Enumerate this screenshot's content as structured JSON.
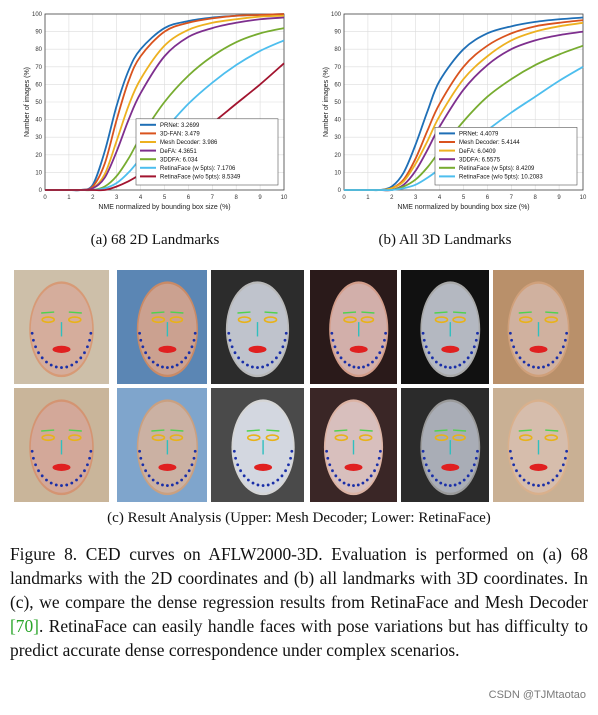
{
  "chart_data": [
    {
      "type": "line",
      "xlabel": "NME normalized by bounding box size (%)",
      "ylabel": "Number of images (%)",
      "xlim": [
        0,
        10
      ],
      "ylim": [
        0,
        100
      ],
      "xticks": [
        "0",
        "1",
        "2",
        "3",
        "4",
        "5",
        "6",
        "7",
        "8",
        "9",
        "10"
      ],
      "yticks": [
        "0",
        "10",
        "20",
        "30",
        "40",
        "50",
        "60",
        "70",
        "80",
        "90",
        "100"
      ],
      "grid": true,
      "legend_position": "bottom-right",
      "series": [
        {
          "name": "PRNet: 3.2699",
          "color": "#1f6fb6",
          "x": [
            0,
            1,
            1.5,
            2,
            2.5,
            3,
            3.5,
            4,
            5,
            6,
            7,
            8,
            9,
            10
          ],
          "y": [
            0,
            0,
            0,
            3,
            22,
            48,
            68,
            80,
            92,
            96,
            98,
            99,
            99.5,
            100
          ]
        },
        {
          "name": "3D-FAN: 3.479",
          "color": "#d9531e",
          "x": [
            0,
            1,
            1.5,
            2,
            2.5,
            3,
            3.5,
            4,
            5,
            6,
            7,
            8,
            9,
            10
          ],
          "y": [
            0,
            0,
            0,
            2,
            15,
            40,
            62,
            76,
            90,
            95,
            97.5,
            99,
            99.5,
            100
          ]
        },
        {
          "name": "Mesh Decoder: 3.986",
          "color": "#edb120",
          "x": [
            0,
            1,
            1.5,
            2,
            2.5,
            3,
            3.5,
            4,
            5,
            6,
            7,
            8,
            9,
            10
          ],
          "y": [
            0,
            0,
            0,
            1,
            9,
            28,
            48,
            63,
            82,
            91,
            95,
            97,
            98.5,
            99
          ]
        },
        {
          "name": "DeFA: 4.3651",
          "color": "#7e2f8e",
          "x": [
            0,
            1,
            1.5,
            2,
            2.5,
            3,
            3.5,
            4,
            5,
            6,
            7,
            8,
            9,
            10
          ],
          "y": [
            0,
            0,
            0,
            1,
            7,
            22,
            40,
            55,
            76,
            87,
            92,
            95,
            97,
            98
          ]
        },
        {
          "name": "3DDFA: 6.034",
          "color": "#77ac30",
          "x": [
            0,
            1,
            1.5,
            2,
            2.5,
            3,
            3.5,
            4,
            5,
            6,
            7,
            8,
            9,
            10
          ],
          "y": [
            0,
            0,
            0,
            0,
            2,
            8,
            18,
            30,
            50,
            65,
            76,
            84,
            89,
            92
          ]
        },
        {
          "name": "RetinaFace (w 5pts): 7.1706",
          "color": "#4dbeee",
          "x": [
            0,
            1,
            1.5,
            2,
            2.5,
            3,
            3.5,
            4,
            5,
            6,
            7,
            8,
            9,
            10
          ],
          "y": [
            0,
            0,
            0,
            0,
            1,
            4,
            10,
            18,
            34,
            49,
            61,
            71,
            79,
            85
          ]
        },
        {
          "name": "RetinaFace (w/o 5pts): 8.5349",
          "color": "#a2142f",
          "x": [
            0,
            1,
            1.5,
            2,
            2.5,
            3,
            3.5,
            4,
            5,
            6,
            7,
            8,
            9,
            10
          ],
          "y": [
            0,
            0,
            0,
            0,
            0,
            2,
            5,
            9,
            18,
            28,
            38,
            49,
            60,
            72
          ]
        }
      ]
    },
    {
      "type": "line",
      "xlabel": "NME normalized by bounding box size (%)",
      "ylabel": "Number of images (%)",
      "xlim": [
        0,
        10
      ],
      "ylim": [
        0,
        100
      ],
      "xticks": [
        "0",
        "1",
        "2",
        "3",
        "4",
        "5",
        "6",
        "7",
        "8",
        "9",
        "10"
      ],
      "yticks": [
        "0",
        "10",
        "20",
        "30",
        "40",
        "50",
        "60",
        "70",
        "80",
        "90",
        "100"
      ],
      "grid": true,
      "legend_position": "bottom-right",
      "series": [
        {
          "name": "PRNet: 4.4079",
          "color": "#1f6fb6",
          "x": [
            0,
            1,
            1.5,
            2,
            2.5,
            3,
            3.5,
            4,
            5,
            6,
            7,
            8,
            9,
            10
          ],
          "y": [
            0,
            0,
            0,
            2,
            10,
            26,
            45,
            62,
            80,
            89,
            93,
            95.5,
            97,
            98
          ]
        },
        {
          "name": "Mesh Decoder: 5.4144",
          "color": "#d9531e",
          "x": [
            0,
            1,
            1.5,
            2,
            2.5,
            3,
            3.5,
            4,
            5,
            6,
            7,
            8,
            9,
            10
          ],
          "y": [
            0,
            0,
            0,
            1,
            6,
            18,
            34,
            49,
            70,
            82,
            89,
            93,
            95,
            96.5
          ]
        },
        {
          "name": "DeFA: 6.0409",
          "color": "#edb120",
          "x": [
            0,
            1,
            1.5,
            2,
            2.5,
            3,
            3.5,
            4,
            5,
            6,
            7,
            8,
            9,
            10
          ],
          "y": [
            0,
            0,
            0,
            1,
            5,
            15,
            28,
            42,
            63,
            76,
            85,
            90,
            93,
            95
          ]
        },
        {
          "name": "3DDFA: 6.5575",
          "color": "#7e2f8e",
          "x": [
            0,
            1,
            1.5,
            2,
            2.5,
            3,
            3.5,
            4,
            5,
            6,
            7,
            8,
            9,
            10
          ],
          "y": [
            0,
            0,
            0,
            0,
            3,
            11,
            23,
            36,
            57,
            71,
            80,
            85,
            88,
            90
          ]
        },
        {
          "name": "RetinaFace (w 5pts): 8.4209",
          "color": "#77ac30",
          "x": [
            0,
            1,
            1.5,
            2,
            2.5,
            3,
            3.5,
            4,
            5,
            6,
            7,
            8,
            9,
            10
          ],
          "y": [
            0,
            0,
            0,
            0,
            2,
            6,
            13,
            22,
            39,
            53,
            63,
            71,
            77,
            82
          ]
        },
        {
          "name": "RetinaFace (w/o 5pts): 10.2083",
          "color": "#4dbeee",
          "x": [
            0,
            1,
            1.5,
            2,
            2.5,
            3,
            3.5,
            4,
            5,
            6,
            7,
            8,
            9,
            10
          ],
          "y": [
            0,
            0,
            0,
            0,
            1,
            3,
            7,
            12,
            23,
            34,
            44,
            53,
            62,
            70
          ]
        }
      ]
    }
  ],
  "subcaptions": {
    "a": "(a)  68 2D Landmarks",
    "b": "(b)  All 3D Landmarks",
    "c": "(c)  Result Analysis (Upper: Mesh Decoder; Lower: RetinaFace)"
  },
  "caption": {
    "part1": "Figure 8. CED curves on AFLW2000-3D. Evaluation is performed on (a) 68 landmarks with the 2D coordinates and (b) all landmarks with 3D coordinates. In (c), we compare the dense regression results from RetinaFace and Mesh Decoder ",
    "ref": "[70]",
    "part2": ".  RetinaFace can easily handle faces with pose variations but has difficulty to predict accurate dense correspondence under complex scenarios."
  },
  "watermark": "CSDN @TJMtaotao"
}
